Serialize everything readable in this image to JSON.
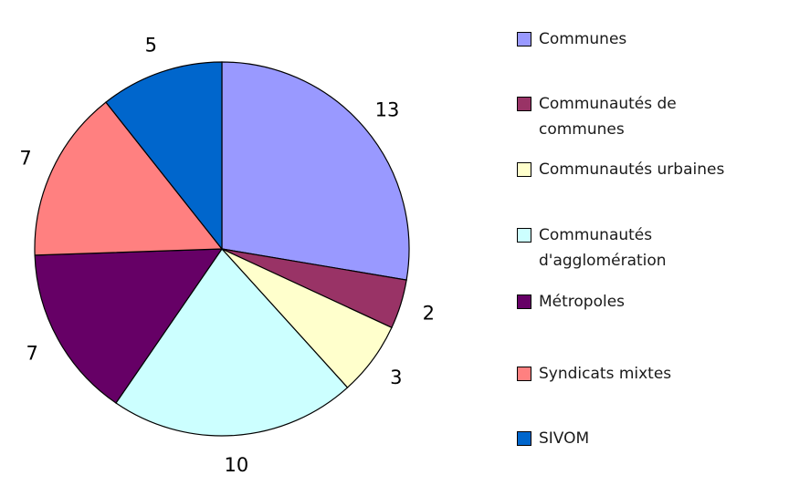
{
  "chart_data": {
    "type": "pie",
    "title": "",
    "total": 47,
    "direction": "clockwise",
    "start_angle_deg": 0,
    "legend_position": "right",
    "outline_color": "#000000",
    "background_color": "#ffffff",
    "slices": [
      {
        "label": "Communes",
        "value": 13,
        "color": "#9999FF"
      },
      {
        "label": "Communautés de\ncommunes",
        "value": 2,
        "color": "#993366"
      },
      {
        "label": "Communautés urbaines",
        "value": 3,
        "color": "#FFFFCC"
      },
      {
        "label": "Communautés\nd'agglomération",
        "value": 10,
        "color": "#CCFFFF"
      },
      {
        "label": "Métropoles",
        "value": 7,
        "color": "#660066"
      },
      {
        "label": "Syndicats mixtes",
        "value": 7,
        "color": "#FF8080"
      },
      {
        "label": "SIVOM",
        "value": 5,
        "color": "#0066CC"
      }
    ]
  }
}
